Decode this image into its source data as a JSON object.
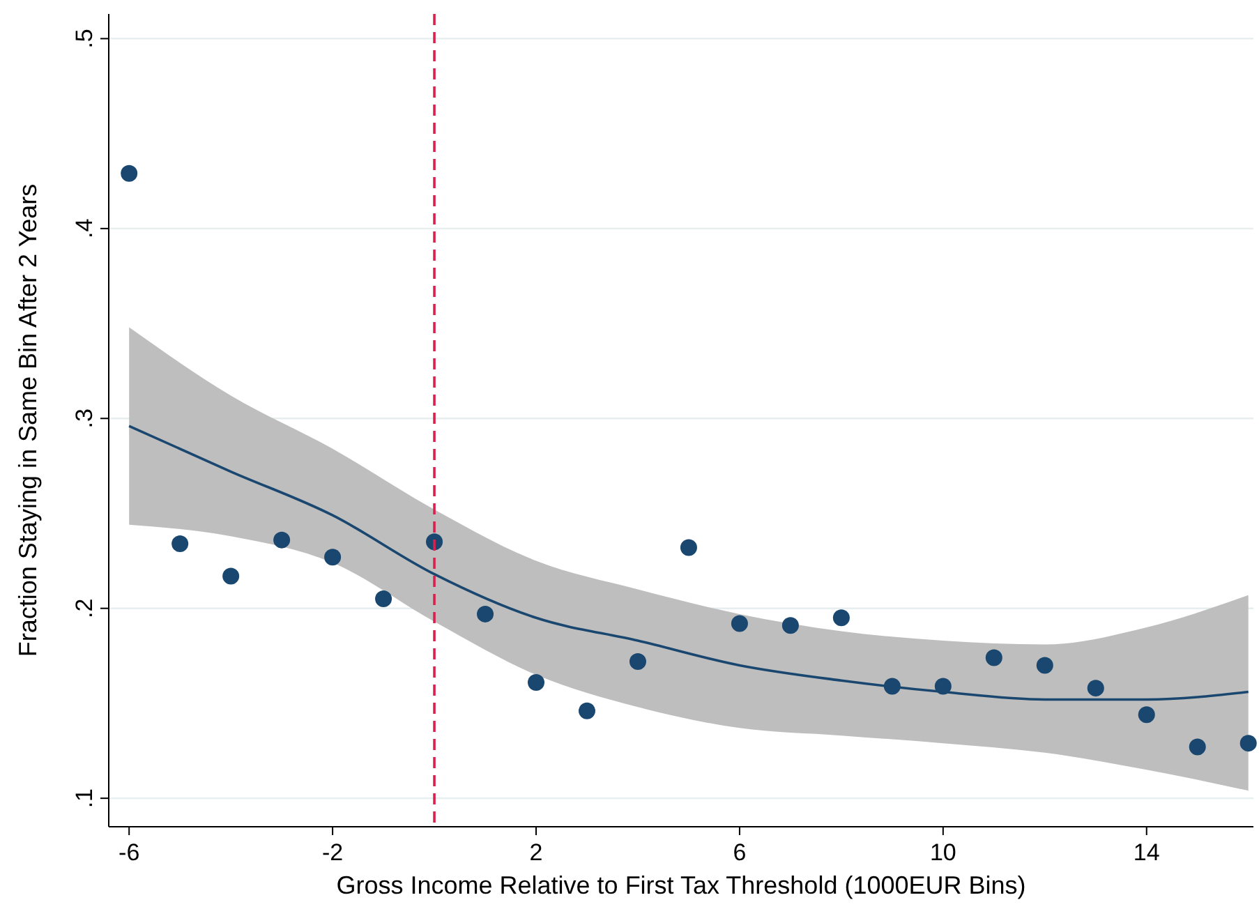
{
  "chart_data": {
    "type": "scatter",
    "xlabel": "Gross Income Relative to First Tax Threshold (1000EUR Bins)",
    "ylabel": "Fraction Staying in Same Bin After 2 Years",
    "xlim": [
      -6.4,
      16.1
    ],
    "xticks": [
      -6,
      -2,
      2,
      6,
      10,
      14
    ],
    "ylim": [
      0.085,
      0.513
    ],
    "yticks": [
      {
        "value": 0.1,
        "label": ".1"
      },
      {
        "value": 0.2,
        "label": ".2"
      },
      {
        "value": 0.3,
        "label": ".3"
      },
      {
        "value": 0.4,
        "label": ".4"
      },
      {
        "value": 0.5,
        "label": ".5"
      }
    ],
    "grid": "y",
    "marker": "circle",
    "series": [
      {
        "type": "line",
        "marker": "none",
        "color": "#1a476f",
        "x": [
          -6,
          -4,
          -2,
          0,
          2,
          4,
          6,
          8,
          10,
          12,
          14,
          16
        ],
        "values": [
          0.296,
          0.272,
          0.249,
          0.218,
          0.195,
          0.183,
          0.17,
          0.162,
          0.156,
          0.152,
          0.152,
          0.156
        ],
        "lower": [
          0.244,
          0.238,
          0.224,
          0.193,
          0.165,
          0.148,
          0.137,
          0.133,
          0.129,
          0.124,
          0.115,
          0.104
        ],
        "upper": [
          0.348,
          0.312,
          0.284,
          0.252,
          0.225,
          0.21,
          0.197,
          0.188,
          0.183,
          0.181,
          0.19,
          0.207
        ]
      },
      {
        "color": "#1a476f",
        "x": [
          -6,
          -5,
          -4,
          -3,
          -2,
          -1,
          0,
          1,
          2,
          3,
          4,
          5,
          6,
          7,
          8,
          9,
          10,
          11,
          12,
          13,
          14,
          15,
          16
        ],
        "values": [
          0.429,
          0.234,
          0.217,
          0.236,
          0.227,
          0.205,
          0.235,
          0.197,
          0.161,
          0.146,
          0.172,
          0.232,
          0.192,
          0.191,
          0.195,
          0.159,
          0.159,
          0.174,
          0.17,
          0.158,
          0.144,
          0.127,
          0.129
        ]
      }
    ],
    "ref_lines": [
      {
        "axis": "x",
        "value": 0,
        "color": "#d9214e",
        "line_style": "dashed"
      }
    ]
  }
}
